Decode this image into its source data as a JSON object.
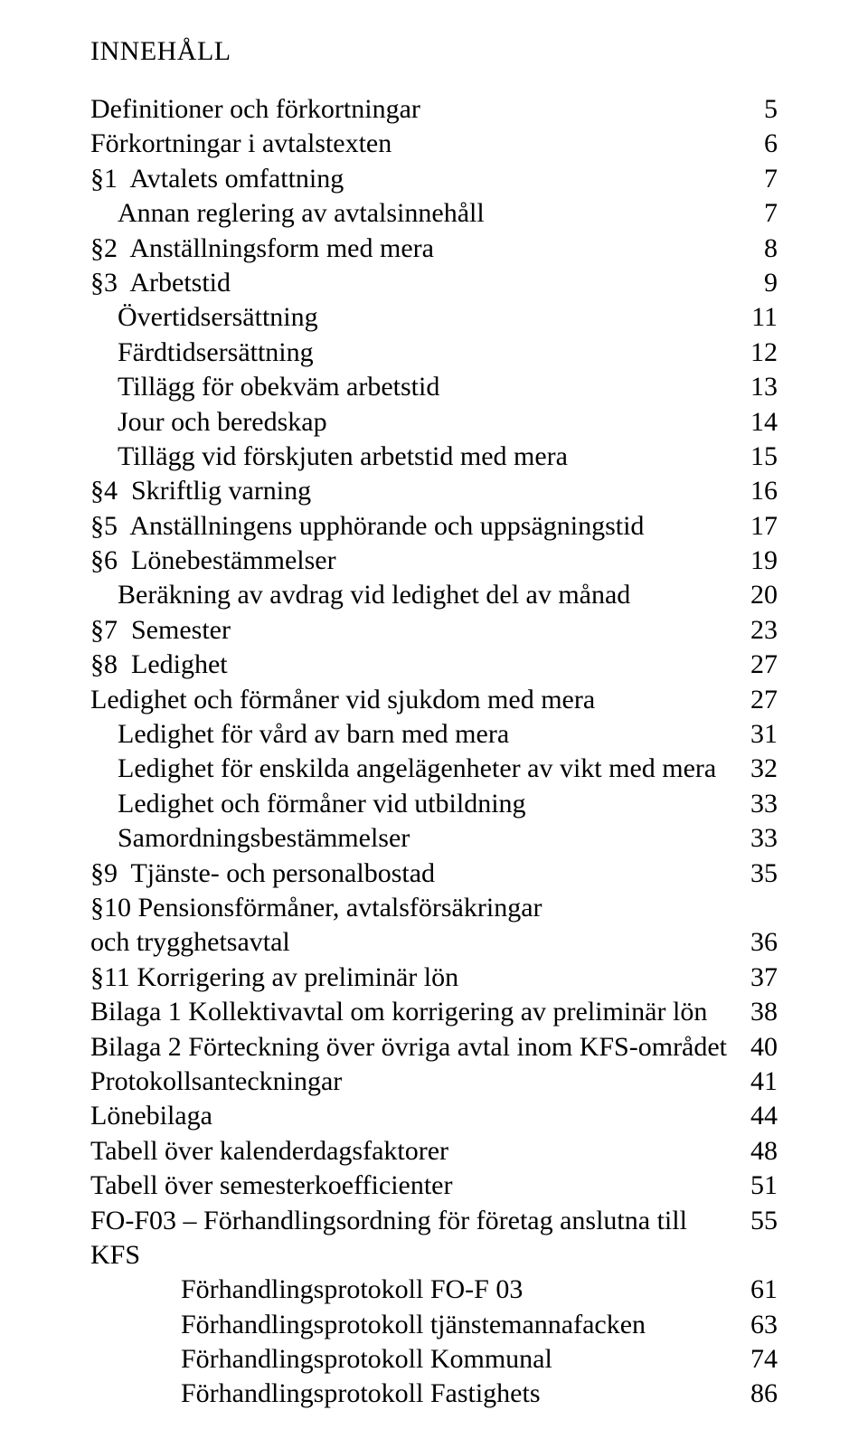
{
  "heading": "INNEHÅLL",
  "text_color": "#000000",
  "background_color": "#ffffff",
  "font_family": "Times New Roman",
  "heading_fontsize": 30,
  "row_fontsize": 30,
  "toc": [
    {
      "label": "Definitioner och förkortningar",
      "page": "5",
      "indent": 0
    },
    {
      "label": "Förkortningar i avtalstexten",
      "page": "6",
      "indent": 0
    },
    {
      "label": "§1  Avtalets omfattning",
      "page": "7",
      "indent": 0
    },
    {
      "label": "Annan reglering av avtalsinnehåll",
      "page": "7",
      "indent": 1
    },
    {
      "label": "§2  Anställningsform med mera",
      "page": "8",
      "indent": 0
    },
    {
      "label": "§3  Arbetstid",
      "page": "9",
      "indent": 0
    },
    {
      "label": "Övertidsersättning",
      "page": "11",
      "indent": 1
    },
    {
      "label": "Färdtidsersättning",
      "page": "12",
      "indent": 1
    },
    {
      "label": "Tillägg för obekväm arbetstid",
      "page": "13",
      "indent": 1
    },
    {
      "label": "Jour och beredskap",
      "page": "14",
      "indent": 1
    },
    {
      "label": "Tillägg vid förskjuten arbetstid med mera",
      "page": "15",
      "indent": 1
    },
    {
      "label": "§4  Skriftlig varning",
      "page": "16",
      "indent": 0
    },
    {
      "label": "§5  Anställningens upphörande och uppsägningstid",
      "page": "17",
      "indent": 0
    },
    {
      "label": "§6  Lönebestämmelser",
      "page": "19",
      "indent": 0
    },
    {
      "label": "Beräkning av avdrag vid ledighet del av månad",
      "page": "20",
      "indent": 1
    },
    {
      "label": "§7  Semester",
      "page": "23",
      "indent": 0
    },
    {
      "label": "§8  Ledighet",
      "page": "27",
      "indent": 0
    },
    {
      "label": "Ledighet och förmåner vid sjukdom med mera",
      "page": "27",
      "indent": 0
    },
    {
      "label": "Ledighet för vård av barn med mera",
      "page": "31",
      "indent": 1
    },
    {
      "label": "Ledighet för enskilda angelägenheter av vikt med mera",
      "page": "32",
      "indent": 1
    },
    {
      "label": "Ledighet och förmåner vid utbildning",
      "page": "33",
      "indent": 1
    },
    {
      "label": "Samordningsbestämmelser",
      "page": "33",
      "indent": 1
    },
    {
      "label": "§9  Tjänste- och personalbostad",
      "page": "35",
      "indent": 0
    },
    {
      "label": "§10 Pensionsförmåner, avtalsförsäkringar",
      "page": "",
      "indent": 0
    },
    {
      "label": "och trygghetsavtal",
      "page": "36",
      "indent": 0
    },
    {
      "label": "§11 Korrigering av preliminär lön",
      "page": "37",
      "indent": 0
    },
    {
      "label": "Bilaga 1 Kollektivavtal om korrigering av preliminär lön",
      "page": "38",
      "indent": 0
    },
    {
      "label": "Bilaga 2 Förteckning över övriga avtal inom KFS-området",
      "page": "40",
      "indent": 0
    },
    {
      "label": "Protokollsanteckningar",
      "page": "41",
      "indent": 0
    },
    {
      "label": "Lönebilaga",
      "page": "44",
      "indent": 0
    },
    {
      "label": "Tabell över kalenderdagsfaktorer",
      "page": "48",
      "indent": 0
    },
    {
      "label": "Tabell över semesterkoefficienter",
      "page": "51",
      "indent": 0
    },
    {
      "label": "FO-F03 – Förhandlingsordning för företag anslutna till KFS",
      "page": "55",
      "indent": 0
    },
    {
      "label": "Förhandlingsprotokoll FO-F 03",
      "page": "61",
      "indent": 2
    },
    {
      "label": "Förhandlingsprotokoll tjänstemannafacken",
      "page": "63",
      "indent": 2
    },
    {
      "label": "Förhandlingsprotokoll Kommunal",
      "page": "74",
      "indent": 2
    },
    {
      "label": "Förhandlingsprotokoll Fastighets",
      "page": "86",
      "indent": 2
    }
  ]
}
